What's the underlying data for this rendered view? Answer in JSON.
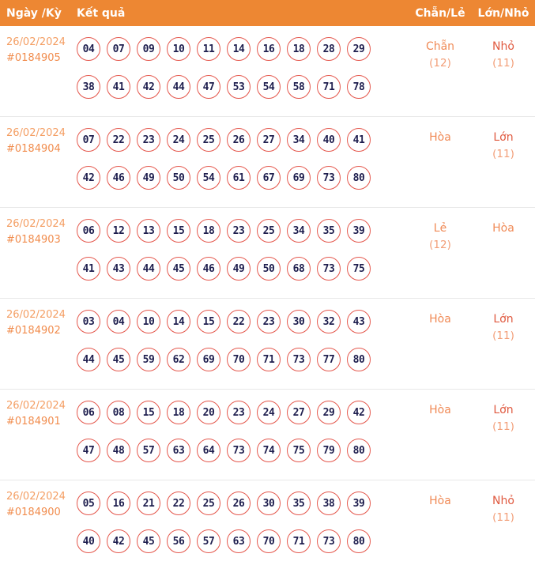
{
  "header": {
    "columns": [
      "Ngày /Kỳ",
      "Kết quả",
      "Chẵn/Lẻ",
      "Lớn/Nhỏ"
    ]
  },
  "colors": {
    "header_bg": "#ED8733",
    "header_text": "#FFFFFF",
    "date_text": "#F49E63",
    "period_text": "#F18C4D",
    "ball_border": "#E4564B",
    "ball_text": "#1E1E4E",
    "result_light": "#F08A56",
    "result_strong": "#E05A40",
    "count_text": "#F29E78",
    "divider": "#E8E8E8"
  },
  "rows": [
    {
      "date": "26/02/2024",
      "period": "#0184905",
      "line1": [
        "04",
        "07",
        "09",
        "10",
        "11",
        "14",
        "16",
        "18",
        "28",
        "29"
      ],
      "line2": [
        "38",
        "41",
        "42",
        "44",
        "47",
        "53",
        "54",
        "58",
        "71",
        "78"
      ],
      "chan_le": {
        "label": "Chẵn",
        "count": "(12)"
      },
      "lon_nho": {
        "label": "Nhỏ",
        "count": "(11)"
      }
    },
    {
      "date": "26/02/2024",
      "period": "#0184904",
      "line1": [
        "07",
        "22",
        "23",
        "24",
        "25",
        "26",
        "27",
        "34",
        "40",
        "41"
      ],
      "line2": [
        "42",
        "46",
        "49",
        "50",
        "54",
        "61",
        "67",
        "69",
        "73",
        "80"
      ],
      "chan_le": {
        "label": "Hòa",
        "count": ""
      },
      "lon_nho": {
        "label": "Lớn",
        "count": "(11)"
      }
    },
    {
      "date": "26/02/2024",
      "period": "#0184903",
      "line1": [
        "06",
        "12",
        "13",
        "15",
        "18",
        "23",
        "25",
        "34",
        "35",
        "39"
      ],
      "line2": [
        "41",
        "43",
        "44",
        "45",
        "46",
        "49",
        "50",
        "68",
        "73",
        "75"
      ],
      "chan_le": {
        "label": "Lẻ",
        "count": "(12)"
      },
      "lon_nho": {
        "label": "Hòa",
        "count": ""
      }
    },
    {
      "date": "26/02/2024",
      "period": "#0184902",
      "line1": [
        "03",
        "04",
        "10",
        "14",
        "15",
        "22",
        "23",
        "30",
        "32",
        "43"
      ],
      "line2": [
        "44",
        "45",
        "59",
        "62",
        "69",
        "70",
        "71",
        "73",
        "77",
        "80"
      ],
      "chan_le": {
        "label": "Hòa",
        "count": ""
      },
      "lon_nho": {
        "label": "Lớn",
        "count": "(11)"
      }
    },
    {
      "date": "26/02/2024",
      "period": "#0184901",
      "line1": [
        "06",
        "08",
        "15",
        "18",
        "20",
        "23",
        "24",
        "27",
        "29",
        "42"
      ],
      "line2": [
        "47",
        "48",
        "57",
        "63",
        "64",
        "73",
        "74",
        "75",
        "79",
        "80"
      ],
      "chan_le": {
        "label": "Hòa",
        "count": ""
      },
      "lon_nho": {
        "label": "Lớn",
        "count": "(11)"
      }
    },
    {
      "date": "26/02/2024",
      "period": "#0184900",
      "line1": [
        "05",
        "16",
        "21",
        "22",
        "25",
        "26",
        "30",
        "35",
        "38",
        "39"
      ],
      "line2": [
        "40",
        "42",
        "45",
        "56",
        "57",
        "63",
        "70",
        "71",
        "73",
        "80"
      ],
      "chan_le": {
        "label": "Hòa",
        "count": ""
      },
      "lon_nho": {
        "label": "Nhỏ",
        "count": "(11)"
      }
    }
  ]
}
